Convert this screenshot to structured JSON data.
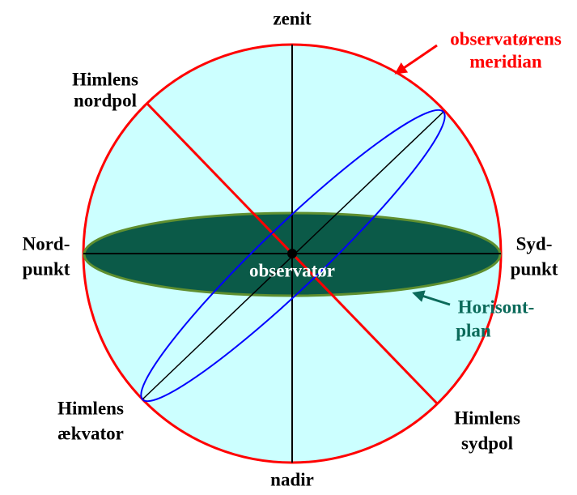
{
  "labels": {
    "zenit": "zenit",
    "nadir": "nadir",
    "north_pole": [
      "Himlens",
      "nordpol"
    ],
    "meridian": [
      "observatørens",
      "meridian"
    ],
    "north_point": [
      "Nord-",
      "punkt"
    ],
    "south_point": [
      "Syd-",
      "punkt"
    ],
    "observer": "observatør",
    "horizon": [
      "Horisont-",
      "plan"
    ],
    "equator": [
      "Himlens",
      "ækvator"
    ],
    "south_pole": [
      "Himlens",
      "sydpol"
    ]
  }
}
